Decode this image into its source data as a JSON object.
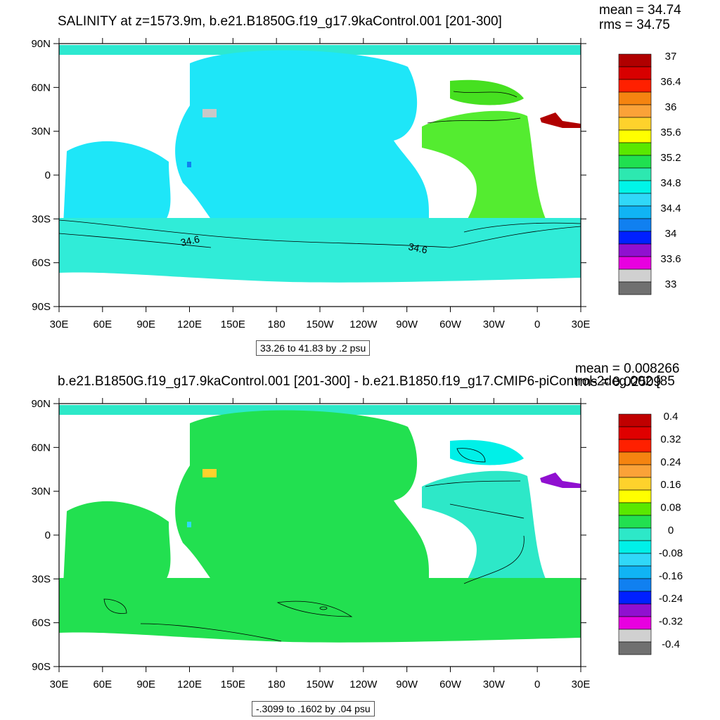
{
  "panels": [
    {
      "title": "SALINITY at z=1573.9m, b.e21.B1850G.f19_g17.9kaControl.001 [201-300]",
      "mean_text": "mean = 34.74",
      "rms_text": "rms = 34.75",
      "contour_info": "33.26 to 41.83 by .2 psu",
      "contour_labels": [
        "34.6",
        "34.6"
      ],
      "colorbar": {
        "labels": [
          "37",
          "36.4",
          "36",
          "35.6",
          "35.2",
          "34.8",
          "34.4",
          "34",
          "33.6",
          "33"
        ],
        "colors": [
          "#b00000",
          "#d80000",
          "#ff2000",
          "#f58410",
          "#fba238",
          "#fed22c",
          "#ffff00",
          "#5ae800",
          "#20e050",
          "#2de8b0",
          "#00f5e8",
          "#30d8f8",
          "#10b4f4",
          "#1080f0",
          "#0020ff",
          "#9010d0",
          "#e800e0",
          "#d0d0d0",
          "#707070"
        ]
      },
      "field_colors": {
        "main": "#1ee6f8",
        "southern": "#30ecd8",
        "atlantic": "#54ec30",
        "north_atl": "#46e020",
        "cap": "#2de8d0",
        "gray": "#c8c8c8",
        "red": "#b00000",
        "blue": "#1080f0"
      }
    },
    {
      "title": "b.e21.B1850G.f19_g17.9kaControl.001 [201-300] - b.e21.B1850.f19_g17.CMIP6-piControl-2deg.002 [85",
      "mean_text": "mean = 0.008266",
      "rms_text": "rms = 0.02509",
      "contour_info": "-.3099 to .1602 by .04 psu",
      "contour_labels": [],
      "colorbar": {
        "labels": [
          "0.4",
          "0.32",
          "0.24",
          "0.16",
          "0.08",
          "0",
          "-0.08",
          "-0.16",
          "-0.24",
          "-0.32",
          "-0.4"
        ],
        "colors": [
          "#c00000",
          "#e00000",
          "#ff2000",
          "#f58410",
          "#fba238",
          "#fed22c",
          "#ffff00",
          "#5ae800",
          "#22e050",
          "#2de8c8",
          "#00f0e8",
          "#30d8f8",
          "#10b4f4",
          "#1080f0",
          "#0020ff",
          "#9010d0",
          "#e800e0",
          "#d0d0d0",
          "#707070"
        ]
      },
      "field_colors": {
        "main": "#22e050",
        "southern": "#22e050",
        "atlantic": "#2de8c8",
        "north_atl": "#00f0e8",
        "cap": "#2de8c8",
        "gray": "#fed22c",
        "red": "#9010d0",
        "blue": "#30d8f8"
      }
    }
  ],
  "axes": {
    "lat_labels": [
      "90N",
      "60N",
      "30N",
      "0",
      "30S",
      "60S",
      "90S"
    ],
    "lon_labels": [
      "30E",
      "60E",
      "90E",
      "120E",
      "150E",
      "180",
      "150W",
      "120W",
      "90W",
      "60W",
      "30W",
      "0",
      "30E"
    ]
  }
}
